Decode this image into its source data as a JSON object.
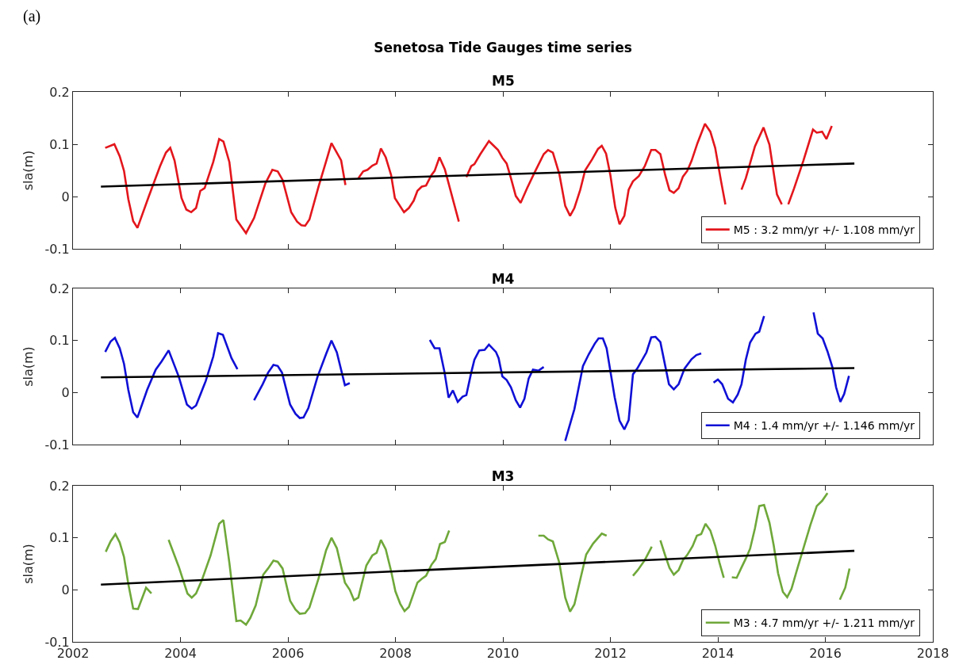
{
  "chart_data": [
    {
      "type": "line",
      "title": "Senetosa Tide Gauges time series",
      "subtitle": "M5",
      "ylabel": "sla(m)",
      "annotations": [
        "(a)"
      ],
      "xlim": [
        2002,
        2018
      ],
      "xticks": [
        2002,
        2004,
        2006,
        2008,
        2010,
        2012,
        2014,
        2016,
        2018
      ],
      "ylim": [
        -0.1,
        0.2
      ],
      "yticks": [
        -0.1,
        0,
        0.1,
        0.2
      ],
      "tick_labels": "y",
      "grid": false,
      "legend": "bottom right",
      "series": [
        {
          "name": "M5 : 3.2 mm/yr +/- 1.108 mm/yr",
          "color": "#e3161c",
          "x": [
            2002.6,
            2002.77,
            2002.87,
            2002.95,
            2003.03,
            2003.12,
            2003.2,
            2003.41,
            2003.62,
            2003.73,
            2003.81,
            2003.89,
            2004.02,
            2004.11,
            2004.2,
            2004.29,
            2004.37,
            2004.45,
            2004.61,
            2004.72,
            2004.8,
            2004.91,
            2005.04,
            2005.22,
            2005.37,
            2005.58,
            2005.71,
            2005.81,
            2005.9,
            2006.06,
            2006.17,
            2006.25,
            2006.32,
            2006.4,
            2006.57,
            2006.73,
            2006.81,
            2006.99,
            2007.07,
            null,
            2007.31,
            2007.4,
            2007.48,
            2007.57,
            2007.65,
            2007.73,
            2007.82,
            2007.92,
            2007.99,
            2008.16,
            2008.25,
            2008.34,
            2008.41,
            2008.49,
            2008.57,
            2008.67,
            2008.73,
            2008.82,
            2008.92,
            2009.18,
            null,
            2009.32,
            2009.41,
            2009.47,
            2009.58,
            2009.74,
            2009.83,
            2009.91,
            2009.99,
            2010.07,
            2010.15,
            2010.24,
            2010.33,
            2010.45,
            2010.59,
            2010.76,
            2010.84,
            2010.93,
            2011.05,
            2011.16,
            2011.25,
            2011.33,
            2011.44,
            2011.53,
            2011.66,
            2011.77,
            2011.84,
            2011.92,
            2012.0,
            2012.09,
            2012.17,
            2012.26,
            2012.34,
            2012.42,
            2012.53,
            2012.64,
            2012.76,
            2012.84,
            2012.93,
            2013.02,
            2013.1,
            2013.18,
            2013.27,
            2013.35,
            2013.43,
            2013.51,
            2013.62,
            2013.76,
            2013.86,
            2013.95,
            2014.06,
            2014.14,
            null,
            2014.44,
            2014.52,
            2014.69,
            2014.85,
            2014.96,
            2015.1,
            2015.19,
            null,
            2015.31,
            2015.42,
            2015.59,
            2015.77,
            2015.84,
            2015.94,
            2016.02,
            2016.12
          ],
          "values": [
            0.093,
            0.1,
            0.077,
            0.049,
            -0.005,
            -0.047,
            -0.06,
            0.0,
            0.058,
            0.084,
            0.093,
            0.069,
            -0.003,
            -0.025,
            -0.03,
            -0.022,
            0.011,
            0.016,
            0.066,
            0.11,
            0.105,
            0.066,
            -0.044,
            -0.07,
            -0.041,
            0.025,
            0.051,
            0.048,
            0.032,
            -0.03,
            -0.048,
            -0.055,
            -0.056,
            -0.044,
            0.019,
            0.074,
            0.102,
            0.069,
            0.022,
            null,
            0.035,
            0.048,
            0.051,
            0.059,
            0.063,
            0.092,
            0.075,
            0.041,
            -0.003,
            -0.03,
            -0.022,
            -0.008,
            0.011,
            0.019,
            0.021,
            0.041,
            0.049,
            0.075,
            0.052,
            -0.048,
            null,
            0.037,
            0.058,
            0.062,
            0.081,
            0.106,
            0.097,
            0.089,
            0.074,
            0.063,
            0.035,
            0.001,
            -0.012,
            0.016,
            0.046,
            0.081,
            0.089,
            0.084,
            0.043,
            -0.018,
            -0.037,
            -0.022,
            0.013,
            0.05,
            0.071,
            0.091,
            0.097,
            0.082,
            0.041,
            -0.021,
            -0.053,
            -0.037,
            0.013,
            0.029,
            0.039,
            0.058,
            0.089,
            0.089,
            0.081,
            0.041,
            0.012,
            0.007,
            0.016,
            0.038,
            0.049,
            0.068,
            0.102,
            0.139,
            0.124,
            0.093,
            0.029,
            -0.015,
            null,
            0.013,
            0.035,
            0.096,
            0.132,
            0.099,
            0.004,
            -0.015,
            null,
            -0.015,
            0.016,
            0.068,
            0.128,
            0.122,
            0.124,
            0.11,
            0.135
          ]
        },
        {
          "type": "line",
          "color": "#000000",
          "x": [
            2002.52,
            2016.54
          ],
          "values": [
            0.019,
            0.063
          ]
        }
      ]
    },
    {
      "type": "line",
      "title": "M4",
      "ylabel": "sla(m)",
      "xlim": [
        2002,
        2018
      ],
      "xticks": [
        2002,
        2004,
        2006,
        2008,
        2010,
        2012,
        2014,
        2016,
        2018
      ],
      "ylim": [
        -0.1,
        0.2
      ],
      "yticks": [
        -0.1,
        0,
        0.1,
        0.2
      ],
      "tick_labels": "y",
      "grid": false,
      "legend": "bottom right",
      "series": [
        {
          "name": "M4 : 1.4 mm/yr +/- 1.146 mm/yr",
          "color": "#1010d6",
          "x": [
            2002.6,
            2002.7,
            2002.78,
            2002.87,
            2002.95,
            2003.03,
            2003.12,
            2003.2,
            2003.38,
            2003.54,
            2003.65,
            2003.78,
            2003.97,
            2004.12,
            2004.21,
            2004.29,
            2004.47,
            2004.61,
            2004.7,
            2004.79,
            2004.95,
            2005.06,
            null,
            2005.37,
            2005.53,
            2005.63,
            2005.73,
            2005.81,
            2005.89,
            2006.04,
            2006.14,
            2006.22,
            2006.29,
            2006.38,
            2006.55,
            2006.71,
            2006.81,
            2006.91,
            2007.06,
            2007.15,
            null,
            2008.64,
            2008.73,
            2008.82,
            2008.91,
            2008.99,
            2009.07,
            2009.16,
            2009.25,
            2009.32,
            2009.41,
            2009.47,
            2009.56,
            2009.66,
            2009.74,
            2009.87,
            2009.92,
            2009.99,
            2010.07,
            2010.15,
            2010.24,
            2010.32,
            2010.4,
            2010.48,
            2010.56,
            2010.66,
            2010.76,
            null,
            2011.16,
            2011.33,
            2011.49,
            2011.6,
            2011.71,
            2011.78,
            2011.86,
            2011.93,
            2012.08,
            2012.17,
            2012.26,
            2012.34,
            2012.42,
            2012.5,
            2012.67,
            2012.76,
            2012.84,
            2012.93,
            2013.09,
            2013.18,
            2013.27,
            2013.38,
            2013.51,
            2013.6,
            2013.69,
            null,
            2013.92,
            2014.0,
            2014.08,
            2014.19,
            2014.28,
            2014.37,
            2014.44,
            2014.52,
            2014.6,
            2014.7,
            2014.77,
            2014.86,
            null,
            2015.78,
            2015.86,
            2015.95,
            2016.04,
            2016.13,
            2016.2,
            2016.28,
            2016.35,
            2016.44
          ],
          "values": [
            0.078,
            0.098,
            0.105,
            0.085,
            0.055,
            0.005,
            -0.038,
            -0.048,
            0.005,
            0.044,
            0.06,
            0.081,
            0.03,
            -0.023,
            -0.031,
            -0.025,
            0.022,
            0.069,
            0.114,
            0.111,
            0.066,
            0.045,
            null,
            -0.015,
            0.016,
            0.038,
            0.053,
            0.051,
            0.038,
            -0.023,
            -0.041,
            -0.049,
            -0.048,
            -0.03,
            0.03,
            0.074,
            0.1,
            0.077,
            0.014,
            0.018,
            null,
            0.101,
            0.085,
            0.085,
            0.041,
            -0.01,
            0.004,
            -0.018,
            -0.008,
            -0.005,
            0.038,
            0.063,
            0.081,
            0.082,
            0.092,
            0.078,
            0.066,
            0.031,
            0.024,
            0.01,
            -0.015,
            -0.029,
            -0.012,
            0.027,
            0.044,
            0.042,
            0.049,
            null,
            -0.093,
            -0.032,
            0.051,
            0.074,
            0.094,
            0.104,
            0.104,
            0.085,
            -0.009,
            -0.054,
            -0.071,
            -0.053,
            0.035,
            0.046,
            0.077,
            0.106,
            0.107,
            0.097,
            0.016,
            0.006,
            0.016,
            0.046,
            0.064,
            0.072,
            0.075,
            null,
            0.019,
            0.025,
            0.016,
            -0.012,
            -0.019,
            -0.004,
            0.016,
            0.063,
            0.096,
            0.113,
            0.117,
            0.147,
            null,
            0.154,
            0.113,
            0.104,
            0.079,
            0.049,
            0.01,
            -0.018,
            -0.003,
            0.032
          ]
        },
        {
          "type": "line",
          "color": "#000000",
          "x": [
            2002.52,
            2016.54
          ],
          "values": [
            0.029,
            0.047
          ]
        }
      ]
    },
    {
      "type": "line",
      "title": "M3",
      "ylabel": "sla(m)",
      "xlim": [
        2002,
        2018
      ],
      "xticks": [
        2002,
        2004,
        2006,
        2008,
        2010,
        2012,
        2014,
        2016,
        2018
      ],
      "ylim": [
        -0.1,
        0.2
      ],
      "yticks": [
        -0.1,
        0,
        0.1,
        0.2
      ],
      "grid": false,
      "legend": "bottom right",
      "series": [
        {
          "name": "M3 : 4.7 mm/yr +/- 1.211 mm/yr",
          "color": "#6fa83a",
          "x": [
            2002.61,
            2002.7,
            2002.79,
            2002.87,
            2002.95,
            2003.03,
            2003.12,
            2003.21,
            2003.36,
            2003.46,
            null,
            2003.78,
            2003.97,
            2004.13,
            2004.21,
            2004.29,
            2004.4,
            2004.56,
            2004.72,
            2004.8,
            2004.91,
            2005.04,
            2005.12,
            2005.22,
            2005.3,
            2005.4,
            2005.54,
            2005.63,
            2005.73,
            2005.81,
            2005.9,
            2006.04,
            2006.14,
            2006.22,
            2006.32,
            2006.4,
            2006.57,
            2006.71,
            2006.81,
            2006.91,
            2007.06,
            2007.15,
            2007.23,
            2007.31,
            2007.46,
            2007.57,
            2007.65,
            2007.73,
            2007.82,
            2007.92,
            2008.0,
            2008.09,
            2008.17,
            2008.25,
            2008.41,
            2008.49,
            2008.57,
            2008.67,
            2008.75,
            2008.83,
            2008.92,
            2009.0,
            null,
            2010.66,
            2010.76,
            2010.84,
            2010.93,
            2011.05,
            2011.16,
            2011.25,
            2011.33,
            2011.41,
            2011.55,
            2011.68,
            2011.84,
            2011.93,
            null,
            2012.42,
            2012.51,
            2012.64,
            2012.77,
            null,
            2012.93,
            2013.02,
            2013.1,
            2013.18,
            2013.27,
            2013.35,
            2013.43,
            2013.53,
            2013.61,
            2013.69,
            2013.77,
            2013.86,
            2013.95,
            2014.03,
            2014.11,
            null,
            2014.26,
            2014.35,
            2014.44,
            2014.52,
            2014.6,
            2014.69,
            2014.77,
            2014.86,
            2014.96,
            2015.04,
            2015.12,
            2015.21,
            2015.29,
            2015.37,
            2015.48,
            2015.59,
            2015.72,
            2015.84,
            2015.94,
            2016.04,
            null,
            2016.27,
            2016.37,
            2016.45
          ],
          "values": [
            0.073,
            0.093,
            0.107,
            0.091,
            0.063,
            0.011,
            -0.036,
            -0.037,
            0.004,
            -0.007,
            null,
            0.096,
            0.044,
            -0.007,
            -0.015,
            -0.007,
            0.019,
            0.066,
            0.127,
            0.134,
            0.052,
            -0.06,
            -0.059,
            -0.067,
            -0.054,
            -0.03,
            0.029,
            0.041,
            0.056,
            0.054,
            0.041,
            -0.021,
            -0.038,
            -0.046,
            -0.045,
            -0.034,
            0.022,
            0.076,
            0.1,
            0.08,
            0.014,
            0.0,
            -0.02,
            -0.015,
            0.047,
            0.066,
            0.071,
            0.096,
            0.078,
            0.036,
            -0.003,
            -0.027,
            -0.041,
            -0.033,
            0.014,
            0.021,
            0.027,
            0.048,
            0.059,
            0.088,
            0.092,
            0.114,
            null,
            0.104,
            0.104,
            0.097,
            0.093,
            0.052,
            -0.015,
            -0.042,
            -0.028,
            0.007,
            0.068,
            0.089,
            0.108,
            0.104,
            null,
            0.027,
            0.038,
            0.057,
            0.083,
            null,
            0.095,
            0.066,
            0.042,
            0.029,
            0.038,
            0.057,
            0.067,
            0.084,
            0.104,
            0.107,
            0.127,
            0.114,
            0.085,
            0.052,
            0.023,
            null,
            0.024,
            0.023,
            0.043,
            0.06,
            0.079,
            0.118,
            0.161,
            0.163,
            0.129,
            0.085,
            0.032,
            -0.004,
            -0.014,
            0.002,
            0.041,
            0.079,
            0.124,
            0.161,
            0.171,
            0.186,
            null,
            -0.019,
            0.004,
            0.041
          ]
        },
        {
          "type": "line",
          "color": "#000000",
          "x": [
            2002.52,
            2016.54
          ],
          "values": [
            0.01,
            0.075
          ]
        }
      ]
    }
  ]
}
